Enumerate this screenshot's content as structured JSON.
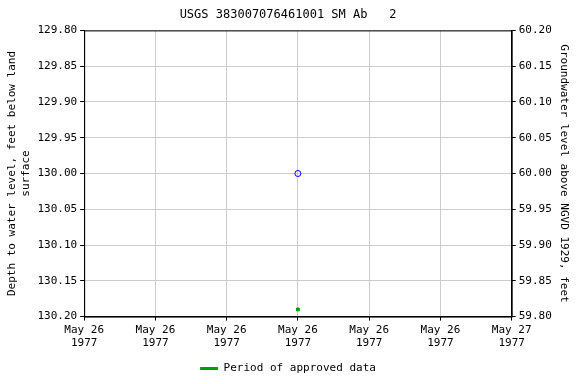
{
  "chart_data": {
    "type": "line",
    "title": "USGS 383007076461001 SM Ab   2",
    "y_label": "Depth to water level, feet below land\nsurface",
    "y2_label": "Groundwater level above NGVD 1929, feet",
    "categories": [
      "May 26\n1977",
      "May 26\n1977",
      "May 26\n1977",
      "May 26\n1977",
      "May 26\n1977",
      "May 26\n1977",
      "May 27\n1977"
    ],
    "series": [
      {
        "color": "#0000ff",
        "marker": "circle",
        "line_style": "none",
        "values": [
          null,
          null,
          null,
          130.0,
          null,
          null,
          null
        ]
      },
      {
        "name": "Period of approved data",
        "color": "#00a000",
        "marker": "square",
        "line_style": "none",
        "values": [
          null,
          null,
          null,
          130.19,
          null,
          null,
          null
        ]
      }
    ],
    "ylim": [
      130.2,
      129.8
    ],
    "yticks": [
      {
        "value": 129.8,
        "label": "129.80"
      },
      {
        "value": 129.85,
        "label": "129.85"
      },
      {
        "value": 129.9,
        "label": "129.90"
      },
      {
        "value": 129.95,
        "label": "129.95"
      },
      {
        "value": 130.0,
        "label": "130.00"
      },
      {
        "value": 130.05,
        "label": "130.05"
      },
      {
        "value": 130.1,
        "label": "130.10"
      },
      {
        "value": 130.15,
        "label": "130.15"
      },
      {
        "value": 130.2,
        "label": "130.20"
      }
    ],
    "y2lim": [
      59.8,
      60.2
    ],
    "y2ticks": [
      {
        "value": 59.8,
        "label": "59.80"
      },
      {
        "value": 59.85,
        "label": "59.85"
      },
      {
        "value": 59.9,
        "label": "59.90"
      },
      {
        "value": 59.95,
        "label": "59.95"
      },
      {
        "value": 60.0,
        "label": "60.00"
      },
      {
        "value": 60.05,
        "label": "60.05"
      },
      {
        "value": 60.1,
        "label": "60.10"
      },
      {
        "value": 60.15,
        "label": "60.15"
      },
      {
        "value": 60.2,
        "label": "60.20"
      }
    ],
    "grid": true,
    "legend": "bottom"
  }
}
